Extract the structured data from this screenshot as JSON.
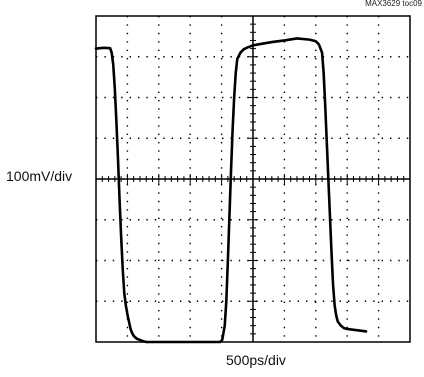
{
  "figure_id": "MAX3629 toc09",
  "chart_data": {
    "type": "line",
    "title": "",
    "xlabel": "500ps/div",
    "ylabel": "100mV/div",
    "divisions": {
      "x": 10,
      "y": 8
    },
    "xlim": [
      0,
      10
    ],
    "ylim": [
      -4,
      4
    ],
    "grid": true,
    "series": [
      {
        "values_note_units": "x in divisions (500ps/div), y in divisions (100mV/div)",
        "x": [
          0,
          0.25,
          0.45,
          0.5,
          0.55,
          0.6,
          0.65,
          0.7,
          0.75,
          0.8,
          0.85,
          0.9,
          0.95,
          1.0,
          1.05,
          1.1,
          1.15,
          1.2,
          1.3,
          1.4,
          1.5,
          1.6,
          1.8,
          2.0,
          2.2,
          2.5,
          2.8,
          3.0,
          3.2,
          3.4,
          3.6,
          3.8,
          3.95,
          4.02,
          4.1,
          4.15,
          4.2,
          4.25,
          4.3,
          4.35,
          4.4,
          4.45,
          4.5,
          4.6,
          4.7,
          4.8,
          5.0,
          5.3,
          5.6,
          6.0,
          6.4,
          6.8,
          7.0,
          7.1,
          7.2,
          7.25,
          7.3,
          7.35,
          7.4,
          7.45,
          7.5,
          7.55,
          7.6,
          7.65,
          7.7,
          7.8,
          7.9,
          8.0,
          8.2,
          8.4,
          8.6
        ],
        "y": [
          3.2,
          3.22,
          3.21,
          3.1,
          2.8,
          2.2,
          1.4,
          0.5,
          -0.5,
          -1.4,
          -2.2,
          -2.8,
          -3.1,
          -3.32,
          -3.5,
          -3.68,
          -3.78,
          -3.85,
          -3.92,
          -3.95,
          -3.98,
          -4.0,
          -4.02,
          -4.0,
          -4.02,
          -4.03,
          -4.06,
          -4.05,
          -4.07,
          -4.06,
          -4.04,
          -4.02,
          -4.01,
          -3.95,
          -3.6,
          -3.0,
          -2.0,
          -0.9,
          0.2,
          1.2,
          2.0,
          2.6,
          2.95,
          3.1,
          3.18,
          3.22,
          3.28,
          3.32,
          3.36,
          3.4,
          3.45,
          3.42,
          3.38,
          3.3,
          3.1,
          2.6,
          1.8,
          0.9,
          0.0,
          -0.9,
          -1.8,
          -2.6,
          -3.1,
          -3.35,
          -3.5,
          -3.6,
          -3.66,
          -3.68,
          -3.7,
          -3.72,
          -3.74
        ]
      }
    ]
  }
}
